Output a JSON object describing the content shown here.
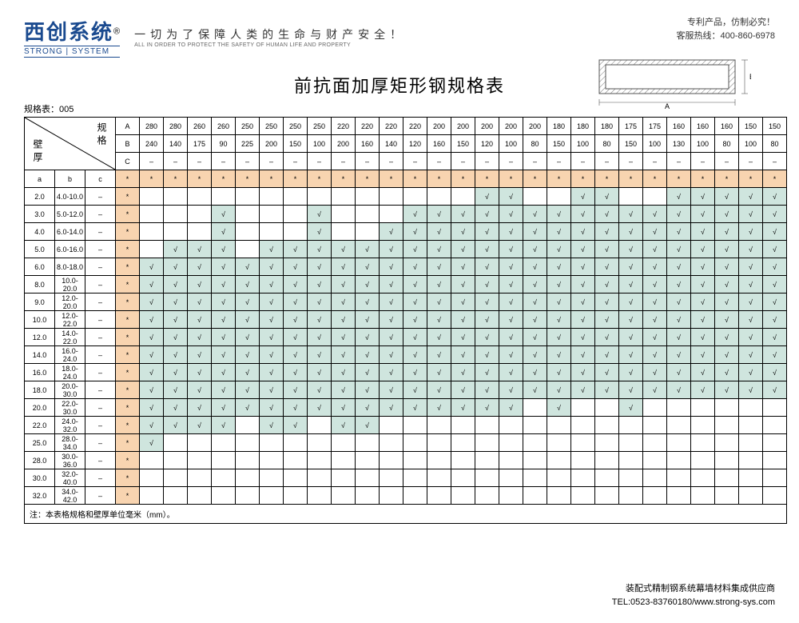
{
  "brand": {
    "cn": "西创系统",
    "reg": "®",
    "en": "STRONG | SYSTEM",
    "slogan_cn": "一切为了保障人类的生命与财产安全！",
    "slogan_en": "ALL IN ORDER TO PROTECT THE SAFETY OF HUMAN LIFE AND PROPERTY"
  },
  "contact": {
    "line1": "专利产品，仿制必究！",
    "line2": "客服热线：400-860-6978"
  },
  "title": "前抗面加厚矩形钢规格表",
  "sheet_id": "规格表：005",
  "diagram": {
    "label_A": "A",
    "label_B": "B"
  },
  "corner": {
    "spec": "规格",
    "wall": "壁厚"
  },
  "spec_headers": {
    "A": [
      "A",
      "280",
      "280",
      "260",
      "260",
      "250",
      "250",
      "250",
      "250",
      "220",
      "220",
      "220",
      "220",
      "200",
      "200",
      "200",
      "200",
      "200",
      "180",
      "180",
      "180",
      "175",
      "175",
      "160",
      "160",
      "160",
      "150",
      "150"
    ],
    "B": [
      "B",
      "240",
      "140",
      "175",
      "90",
      "225",
      "200",
      "150",
      "100",
      "200",
      "160",
      "140",
      "120",
      "160",
      "150",
      "120",
      "100",
      "80",
      "150",
      "100",
      "80",
      "150",
      "100",
      "130",
      "100",
      "80",
      "100",
      "80"
    ],
    "C": [
      "C",
      "–",
      "–",
      "–",
      "–",
      "–",
      "–",
      "–",
      "–",
      "–",
      "–",
      "–",
      "–",
      "–",
      "–",
      "–",
      "–",
      "–",
      "–",
      "–",
      "–",
      "–",
      "–",
      "–",
      "–",
      "–",
      "–",
      "–"
    ]
  },
  "star_row": {
    "abc": [
      "a",
      "b",
      "c"
    ],
    "star": "*"
  },
  "wall_rows": [
    {
      "a": "2.0",
      "b": "4.0-10.0",
      "c": "–",
      "marks": [
        0,
        0,
        0,
        0,
        0,
        0,
        0,
        0,
        0,
        0,
        0,
        0,
        0,
        0,
        0,
        1,
        1,
        0,
        0,
        1,
        1,
        0,
        0,
        1,
        1,
        1,
        1,
        1
      ]
    },
    {
      "a": "3.0",
      "b": "5.0-12.0",
      "c": "–",
      "marks": [
        0,
        0,
        0,
        0,
        1,
        0,
        0,
        0,
        1,
        0,
        0,
        0,
        1,
        1,
        1,
        1,
        1,
        1,
        1,
        1,
        1,
        1,
        1,
        1,
        1,
        1,
        1,
        1
      ]
    },
    {
      "a": "4.0",
      "b": "6.0-14.0",
      "c": "–",
      "marks": [
        0,
        0,
        0,
        0,
        1,
        0,
        0,
        0,
        1,
        0,
        0,
        1,
        1,
        1,
        1,
        1,
        1,
        1,
        1,
        1,
        1,
        1,
        1,
        1,
        1,
        1,
        1,
        1
      ]
    },
    {
      "a": "5.0",
      "b": "6.0-16.0",
      "c": "–",
      "marks": [
        0,
        0,
        1,
        1,
        1,
        0,
        1,
        1,
        1,
        1,
        1,
        1,
        1,
        1,
        1,
        1,
        1,
        1,
        1,
        1,
        1,
        1,
        1,
        1,
        1,
        1,
        1,
        1
      ]
    },
    {
      "a": "6.0",
      "b": "8.0-18.0",
      "c": "–",
      "marks": [
        0,
        1,
        1,
        1,
        1,
        1,
        1,
        1,
        1,
        1,
        1,
        1,
        1,
        1,
        1,
        1,
        1,
        1,
        1,
        1,
        1,
        1,
        1,
        1,
        1,
        1,
        1,
        1
      ]
    },
    {
      "a": "8.0",
      "b": "10.0-20.0",
      "c": "–",
      "marks": [
        0,
        1,
        1,
        1,
        1,
        1,
        1,
        1,
        1,
        1,
        1,
        1,
        1,
        1,
        1,
        1,
        1,
        1,
        1,
        1,
        1,
        1,
        1,
        1,
        1,
        1,
        1,
        1
      ]
    },
    {
      "a": "9.0",
      "b": "12.0-20.0",
      "c": "–",
      "marks": [
        0,
        1,
        1,
        1,
        1,
        1,
        1,
        1,
        1,
        1,
        1,
        1,
        1,
        1,
        1,
        1,
        1,
        1,
        1,
        1,
        1,
        1,
        1,
        1,
        1,
        1,
        1,
        1
      ]
    },
    {
      "a": "10.0",
      "b": "12.0-22.0",
      "c": "–",
      "marks": [
        0,
        1,
        1,
        1,
        1,
        1,
        1,
        1,
        1,
        1,
        1,
        1,
        1,
        1,
        1,
        1,
        1,
        1,
        1,
        1,
        1,
        1,
        1,
        1,
        1,
        1,
        1,
        1
      ]
    },
    {
      "a": "12.0",
      "b": "14.0-22.0",
      "c": "–",
      "marks": [
        0,
        1,
        1,
        1,
        1,
        1,
        1,
        1,
        1,
        1,
        1,
        1,
        1,
        1,
        1,
        1,
        1,
        1,
        1,
        1,
        1,
        1,
        1,
        1,
        1,
        1,
        1,
        1
      ]
    },
    {
      "a": "14.0",
      "b": "16.0-24.0",
      "c": "–",
      "marks": [
        0,
        1,
        1,
        1,
        1,
        1,
        1,
        1,
        1,
        1,
        1,
        1,
        1,
        1,
        1,
        1,
        1,
        1,
        1,
        1,
        1,
        1,
        1,
        1,
        1,
        1,
        1,
        1
      ]
    },
    {
      "a": "16.0",
      "b": "18.0-24.0",
      "c": "–",
      "marks": [
        0,
        1,
        1,
        1,
        1,
        1,
        1,
        1,
        1,
        1,
        1,
        1,
        1,
        1,
        1,
        1,
        1,
        1,
        1,
        1,
        1,
        1,
        1,
        1,
        1,
        1,
        1,
        1
      ]
    },
    {
      "a": "18.0",
      "b": "20.0-30.0",
      "c": "–",
      "marks": [
        0,
        1,
        1,
        1,
        1,
        1,
        1,
        1,
        1,
        1,
        1,
        1,
        1,
        1,
        1,
        1,
        1,
        1,
        1,
        1,
        1,
        1,
        1,
        1,
        1,
        1,
        1,
        1
      ]
    },
    {
      "a": "20.0",
      "b": "22.0-30.0",
      "c": "–",
      "marks": [
        0,
        1,
        1,
        1,
        1,
        1,
        1,
        1,
        1,
        1,
        1,
        1,
        1,
        1,
        1,
        1,
        1,
        0,
        1,
        0,
        0,
        1,
        0,
        0,
        0,
        0,
        0,
        0
      ]
    },
    {
      "a": "22.0",
      "b": "24.0-32.0",
      "c": "–",
      "marks": [
        0,
        1,
        1,
        1,
        1,
        0,
        1,
        1,
        0,
        1,
        1,
        0,
        0,
        0,
        0,
        0,
        0,
        0,
        0,
        0,
        0,
        0,
        0,
        0,
        0,
        0,
        0,
        0
      ]
    },
    {
      "a": "25.0",
      "b": "28.0-34.0",
      "c": "–",
      "marks": [
        0,
        1,
        0,
        0,
        0,
        0,
        0,
        0,
        0,
        0,
        0,
        0,
        0,
        0,
        0,
        0,
        0,
        0,
        0,
        0,
        0,
        0,
        0,
        0,
        0,
        0,
        0,
        0
      ]
    },
    {
      "a": "28.0",
      "b": "30.0-36.0",
      "c": "–",
      "marks": [
        0,
        0,
        0,
        0,
        0,
        0,
        0,
        0,
        0,
        0,
        0,
        0,
        0,
        0,
        0,
        0,
        0,
        0,
        0,
        0,
        0,
        0,
        0,
        0,
        0,
        0,
        0,
        0
      ]
    },
    {
      "a": "30.0",
      "b": "32.0-40.0",
      "c": "–",
      "marks": [
        0,
        0,
        0,
        0,
        0,
        0,
        0,
        0,
        0,
        0,
        0,
        0,
        0,
        0,
        0,
        0,
        0,
        0,
        0,
        0,
        0,
        0,
        0,
        0,
        0,
        0,
        0,
        0
      ]
    },
    {
      "a": "32.0",
      "b": "34.0-42.0",
      "c": "–",
      "marks": [
        0,
        0,
        0,
        0,
        0,
        0,
        0,
        0,
        0,
        0,
        0,
        0,
        0,
        0,
        0,
        0,
        0,
        0,
        0,
        0,
        0,
        0,
        0,
        0,
        0,
        0,
        0,
        0
      ]
    }
  ],
  "check": "√",
  "note": "注：本表格规格和壁厚单位毫米（mm）。",
  "footer": {
    "line1": "装配式精制钢系统幕墙材料集成供应商",
    "line2": "TEL:0523-83760180/www.strong-sys.com"
  },
  "colors": {
    "peach": "#f8d4b0",
    "mint": "#cfe5de",
    "border": "#000000",
    "brand": "#1a4a8f"
  }
}
